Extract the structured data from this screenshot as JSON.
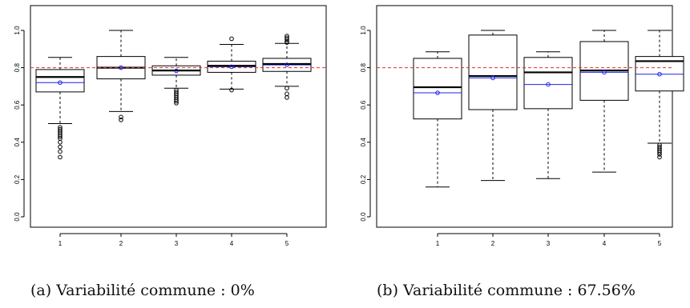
{
  "chart_data": [
    {
      "type": "boxplot",
      "caption": "(a) Variabilité commune : 0%",
      "title": "",
      "xlabel": "",
      "ylabel": "",
      "categories": [
        "1",
        "2",
        "3",
        "4",
        "5"
      ],
      "ylim": [
        0.0,
        1.0
      ],
      "yticks": [
        "0.0",
        "0.2",
        "0.4",
        "0.6",
        "0.8",
        "1.0"
      ],
      "reference_line": 0.8,
      "reference_color": "#e0302a",
      "median_color": "#000000",
      "mean_color": "#1f24e6",
      "boxes": [
        {
          "category": "1",
          "whisker_low": 0.5,
          "q1": 0.67,
          "median": 0.75,
          "mean": 0.72,
          "q3": 0.79,
          "whisker_high": 0.855,
          "outliers": [
            0.48,
            0.47,
            0.46,
            0.45,
            0.44,
            0.43,
            0.42,
            0.4,
            0.375,
            0.35,
            0.32
          ]
        },
        {
          "category": "2",
          "whisker_low": 0.565,
          "q1": 0.74,
          "median": 0.8,
          "mean": 0.8,
          "q3": 0.86,
          "whisker_high": 1.0,
          "outliers": [
            0.535,
            0.52
          ]
        },
        {
          "category": "3",
          "whisker_low": 0.69,
          "q1": 0.76,
          "median": 0.785,
          "mean": 0.783,
          "q3": 0.81,
          "whisker_high": 0.855,
          "outliers": [
            0.68,
            0.67,
            0.66,
            0.65,
            0.64,
            0.63,
            0.62,
            0.61
          ]
        },
        {
          "category": "4",
          "whisker_low": 0.685,
          "q1": 0.775,
          "median": 0.81,
          "mean": 0.805,
          "q3": 0.835,
          "whisker_high": 0.925,
          "outliers": [
            0.955,
            0.68
          ]
        },
        {
          "category": "5",
          "whisker_low": 0.7,
          "q1": 0.78,
          "median": 0.82,
          "mean": 0.815,
          "q3": 0.85,
          "whisker_high": 0.93,
          "outliers": [
            0.97,
            0.96,
            0.95,
            0.94,
            0.935,
            0.69,
            0.66,
            0.64
          ]
        }
      ]
    },
    {
      "type": "boxplot",
      "caption": "(b) Variabilité commune : 67.56%",
      "title": "",
      "xlabel": "",
      "ylabel": "",
      "categories": [
        "1",
        "2",
        "3",
        "4",
        "5"
      ],
      "ylim": [
        0.0,
        1.0
      ],
      "yticks": [
        "0.0",
        "0.2",
        "0.4",
        "0.6",
        "0.8",
        "1.0"
      ],
      "reference_line": 0.8,
      "reference_color": "#e0302a",
      "median_color": "#000000",
      "mean_color": "#1f24e6",
      "boxes": [
        {
          "category": "1",
          "whisker_low": 0.16,
          "q1": 0.525,
          "median": 0.695,
          "mean": 0.665,
          "q3": 0.85,
          "whisker_high": 0.885,
          "outliers": []
        },
        {
          "category": "2",
          "whisker_low": 0.195,
          "q1": 0.575,
          "median": 0.755,
          "mean": 0.745,
          "q3": 0.975,
          "whisker_high": 1.0,
          "outliers": []
        },
        {
          "category": "3",
          "whisker_low": 0.205,
          "q1": 0.58,
          "median": 0.775,
          "mean": 0.71,
          "q3": 0.855,
          "whisker_high": 0.885,
          "outliers": []
        },
        {
          "category": "4",
          "whisker_low": 0.24,
          "q1": 0.625,
          "median": 0.785,
          "mean": 0.775,
          "q3": 0.94,
          "whisker_high": 1.0,
          "outliers": []
        },
        {
          "category": "5",
          "whisker_low": 0.395,
          "q1": 0.675,
          "median": 0.835,
          "mean": 0.765,
          "q3": 0.86,
          "whisker_high": 1.0,
          "outliers": [
            0.385,
            0.375,
            0.365,
            0.355,
            0.345,
            0.335,
            0.32
          ]
        }
      ]
    }
  ]
}
